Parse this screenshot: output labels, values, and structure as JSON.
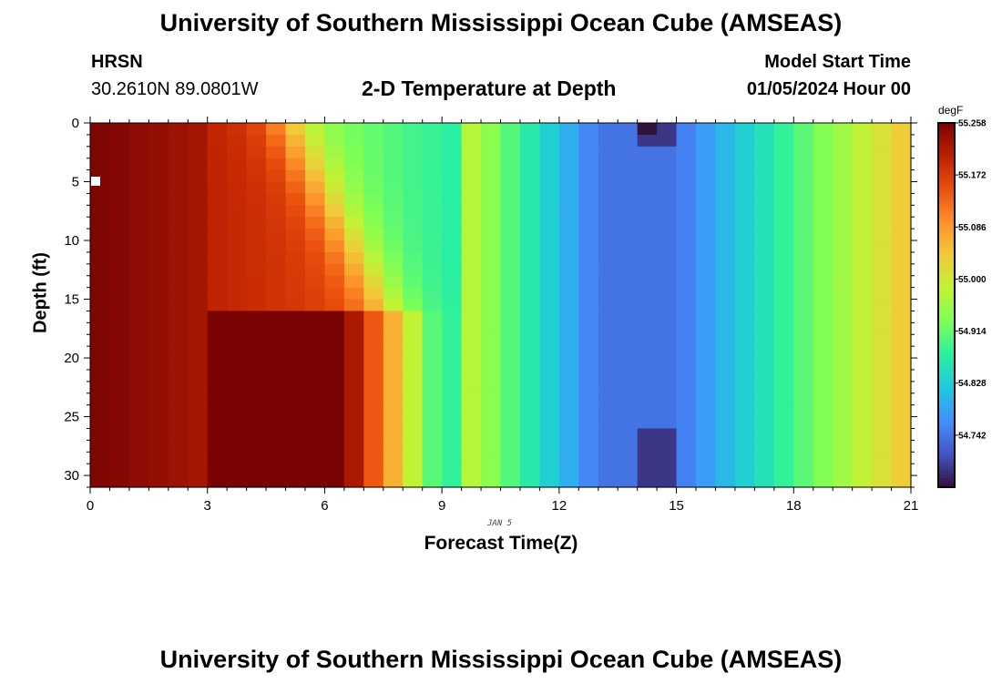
{
  "header": {
    "title": "University of Southern Mississippi Ocean Cube (AMSEAS)",
    "station": "HRSN",
    "coords": "30.2610N  89.0801W",
    "heading": "2-D Temperature at Depth",
    "start_label": "Model Start Time",
    "start_value": "01/05/2024 Hour 00",
    "footer_title": "University of Southern Mississippi Ocean Cube (AMSEAS)"
  },
  "chart_data": {
    "type": "heatmap",
    "title": "2-D Temperature at Depth",
    "xlabel": "Forecast Time(Z)",
    "ylabel": "Depth (ft)",
    "date_label": "JAN 5",
    "xlim": [
      0,
      21
    ],
    "ylim": [
      0,
      31
    ],
    "x_ticks": [
      0,
      3,
      6,
      9,
      12,
      15,
      18,
      21
    ],
    "y_ticks": [
      0,
      5,
      10,
      15,
      20,
      25,
      30
    ],
    "colorbar": {
      "unit": "degF",
      "min": 54.656,
      "max": 55.258,
      "ticks": [
        "55.258",
        "55.172",
        "55.086",
        "55.000",
        "54.914",
        "54.828",
        "54.742"
      ],
      "colors": [
        "#30123b",
        "#4454c4",
        "#4490fe",
        "#1fc8de",
        "#29efa2",
        "#7dff56",
        "#c1f334",
        "#f1ca3a",
        "#fe922a",
        "#ea4f0d",
        "#be2102",
        "#7a0403"
      ]
    },
    "n_time": 42,
    "n_depth": 31,
    "description": "Warm (~55.2 degF) water in early hours cooling to ~54.7 degF minimum near hour 12-15, then warming again by hour 21; a cold column near hour 14.5"
  }
}
